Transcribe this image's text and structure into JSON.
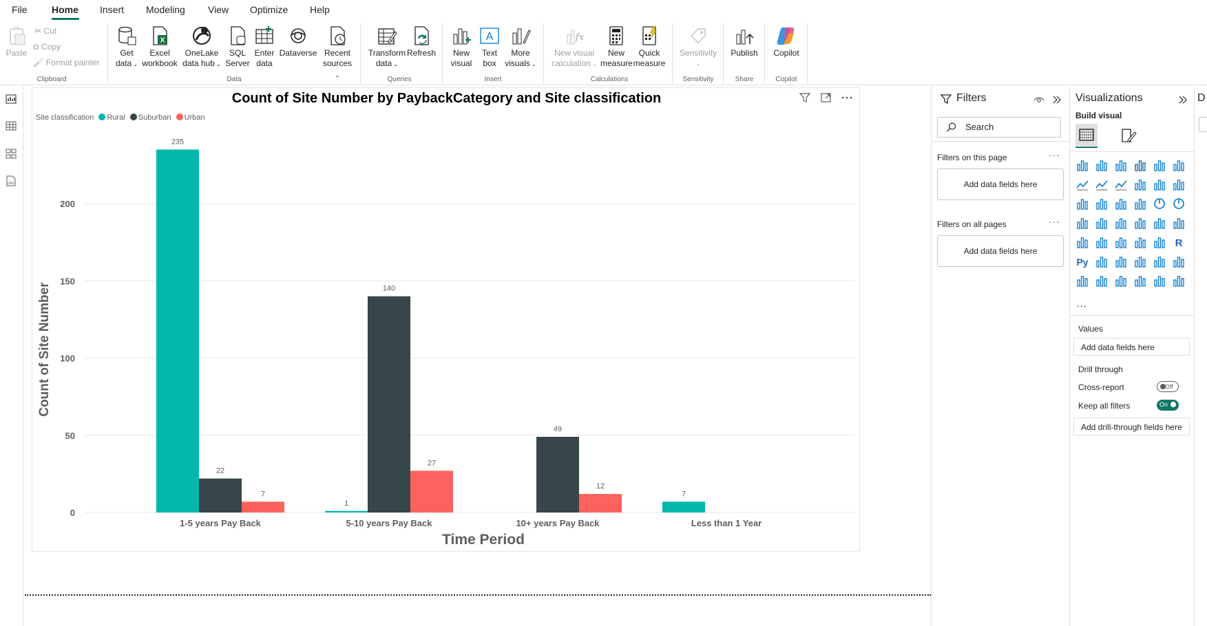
{
  "menu": {
    "tabs": [
      "File",
      "Home",
      "Insert",
      "Modeling",
      "View",
      "Optimize",
      "Help"
    ],
    "active": "Home"
  },
  "ribbon": {
    "clipboard": {
      "paste": "Paste",
      "cut": "Cut",
      "copy": "Copy",
      "format_painter": "Format painter",
      "group": "Clipboard"
    },
    "data": {
      "get_data": [
        "Get",
        "data"
      ],
      "excel": [
        "Excel",
        "workbook"
      ],
      "onelake": [
        "OneLake",
        "data hub"
      ],
      "sql": [
        "SQL",
        "Server"
      ],
      "enter": [
        "Enter",
        "data"
      ],
      "dataverse": "Dataverse",
      "recent": [
        "Recent",
        "sources"
      ],
      "group": "Data"
    },
    "queries": {
      "transform": [
        "Transform",
        "data"
      ],
      "refresh": "Refresh",
      "group": "Queries"
    },
    "insert": {
      "new_visual": [
        "New",
        "visual"
      ],
      "text_box": [
        "Text",
        "box"
      ],
      "more": [
        "More",
        "visuals"
      ],
      "group": "Insert"
    },
    "calculations": {
      "new_calc": [
        "New visual",
        "calculation"
      ],
      "new_measure": [
        "New",
        "measure"
      ],
      "quick": [
        "Quick",
        "measure"
      ],
      "group": "Calculations"
    },
    "sensitivity": {
      "label": "Sensitivity",
      "group": "Sensitivity"
    },
    "share": {
      "publish": "Publish",
      "group": "Share"
    },
    "copilot": {
      "label": "Copilot",
      "group": "Copilot"
    }
  },
  "visual": {
    "title": "Count of Site Number by PaybackCategory and Site classification",
    "legend_title": "Site classification"
  },
  "chart_data": {
    "type": "bar",
    "title": "Count of Site Number by PaybackCategory and Site classification",
    "xlabel": "Time Period",
    "ylabel": "Count of Site Number",
    "categories": [
      "1-5 years Pay Back",
      "5-10 years Pay Back",
      "10+ years Pay Back",
      "Less than 1 Year"
    ],
    "series": [
      {
        "name": "Rural",
        "color": "#01B8AA",
        "values": [
          235,
          1,
          null,
          7
        ]
      },
      {
        "name": "Suburban",
        "color": "#374649",
        "values": [
          22,
          140,
          49,
          null
        ]
      },
      {
        "name": "Urban",
        "color": "#FD625E",
        "values": [
          7,
          27,
          12,
          null
        ]
      }
    ],
    "yticks": [
      0,
      50,
      100,
      150,
      200
    ],
    "ylim": [
      0,
      245
    ],
    "grid": true,
    "legend_position": "top-left"
  },
  "filters": {
    "title": "Filters",
    "search_placeholder": "Search",
    "this_page": "Filters on this page",
    "all_pages": "Filters on all pages",
    "add_fields": "Add data fields here"
  },
  "visualizations": {
    "title": "Visualizations",
    "build_visual": "Build visual",
    "more": "...",
    "values_label": "Values",
    "values_well": "Add data fields here",
    "drill_through": "Drill through",
    "cross_report": "Cross-report",
    "cross_report_state": "Off",
    "keep_all_filters": "Keep all filters",
    "keep_all_filters_state": "On",
    "drill_well": "Add drill-through fields here"
  },
  "data_pane": {
    "title": "D"
  }
}
